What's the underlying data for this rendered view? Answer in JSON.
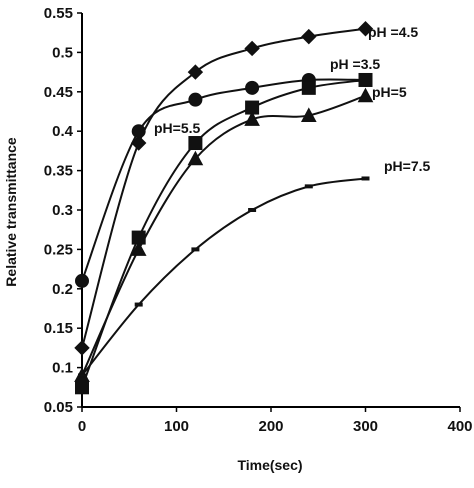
{
  "chart_data": {
    "type": "line",
    "xlabel": "Time(sec)",
    "ylabel": "Relative transmittance",
    "xlim": [
      0,
      400
    ],
    "ylim": [
      0.05,
      0.55
    ],
    "xticks": [
      0,
      100,
      200,
      300,
      400
    ],
    "yticks": [
      0.05,
      0.1,
      0.15,
      0.2,
      0.25,
      0.3,
      0.35,
      0.4,
      0.45,
      0.5,
      0.55
    ],
    "ytick_labels": [
      "0.05",
      "0.1",
      "0.15",
      "0.2",
      "0.25",
      "0.3",
      "0.35",
      "0.4",
      "0.45",
      "0.5",
      "0.55"
    ],
    "grid": false,
    "legend": "inline labels",
    "series": [
      {
        "name": "pH =4.5",
        "marker": "diamond",
        "x": [
          0,
          60,
          120,
          180,
          240,
          300
        ],
        "y": [
          0.125,
          0.385,
          0.475,
          0.505,
          0.52,
          0.53
        ]
      },
      {
        "name": "pH =3.5",
        "marker": "circle",
        "x": [
          0,
          60,
          120,
          180,
          240,
          300
        ],
        "y": [
          0.21,
          0.4,
          0.44,
          0.455,
          0.465,
          0.465
        ]
      },
      {
        "name": "pH=5.5",
        "marker": "square",
        "x": [
          0,
          60,
          120,
          180,
          240,
          300
        ],
        "y": [
          0.075,
          0.265,
          0.385,
          0.43,
          0.455,
          0.465
        ]
      },
      {
        "name": "pH=5",
        "marker": "triangle",
        "x": [
          0,
          60,
          120,
          180,
          240,
          300
        ],
        "y": [
          0.09,
          0.25,
          0.365,
          0.415,
          0.42,
          0.445
        ]
      },
      {
        "name": "pH=7.5",
        "marker": "dash",
        "x": [
          0,
          60,
          120,
          180,
          240,
          300
        ],
        "y": [
          0.09,
          0.18,
          0.25,
          0.3,
          0.33,
          0.34
        ]
      }
    ]
  }
}
